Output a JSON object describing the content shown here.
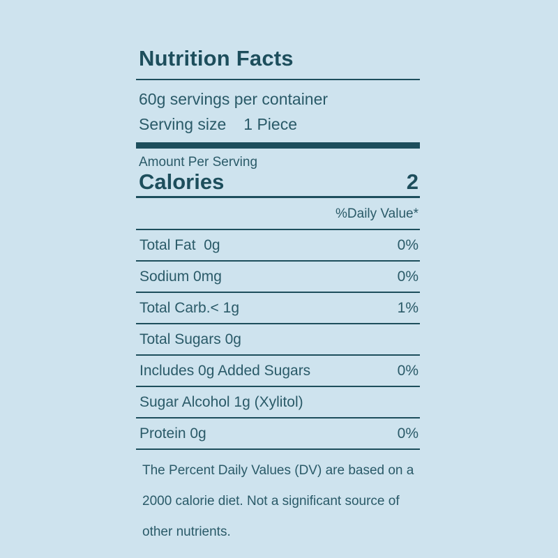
{
  "label": {
    "title": "Nutrition Facts",
    "servings_per_container": "60g servings per container",
    "serving_size_label": "Serving size",
    "serving_size_value": "1 Piece",
    "amount_per_serving": "Amount Per Serving",
    "calories_label": "Calories",
    "calories_value": "2",
    "daily_value_header": "%Daily Value*",
    "rows": [
      {
        "name": "Total Fat  0g",
        "pct": "0%"
      },
      {
        "name": "Sodium 0mg",
        "pct": "0%"
      },
      {
        "name": "Total Carb.< 1g",
        "pct": "1%"
      },
      {
        "name": "Total Sugars 0g",
        "pct": ""
      },
      {
        "name": "Includes 0g Added Sugars",
        "pct": "0%"
      },
      {
        "name": "Sugar Alcohol 1g (Xylitol)",
        "pct": ""
      },
      {
        "name": "Protein 0g",
        "pct": "0%"
      }
    ],
    "footnote_lines": [
      "The Percent Daily Values (DV) are based on a",
      "2000 calorie diet. Not a significant source of",
      "other nutrients."
    ]
  },
  "colors": {
    "background": "#cee3ee",
    "ink": "#1d4e5c",
    "text": "#2a5a68"
  }
}
